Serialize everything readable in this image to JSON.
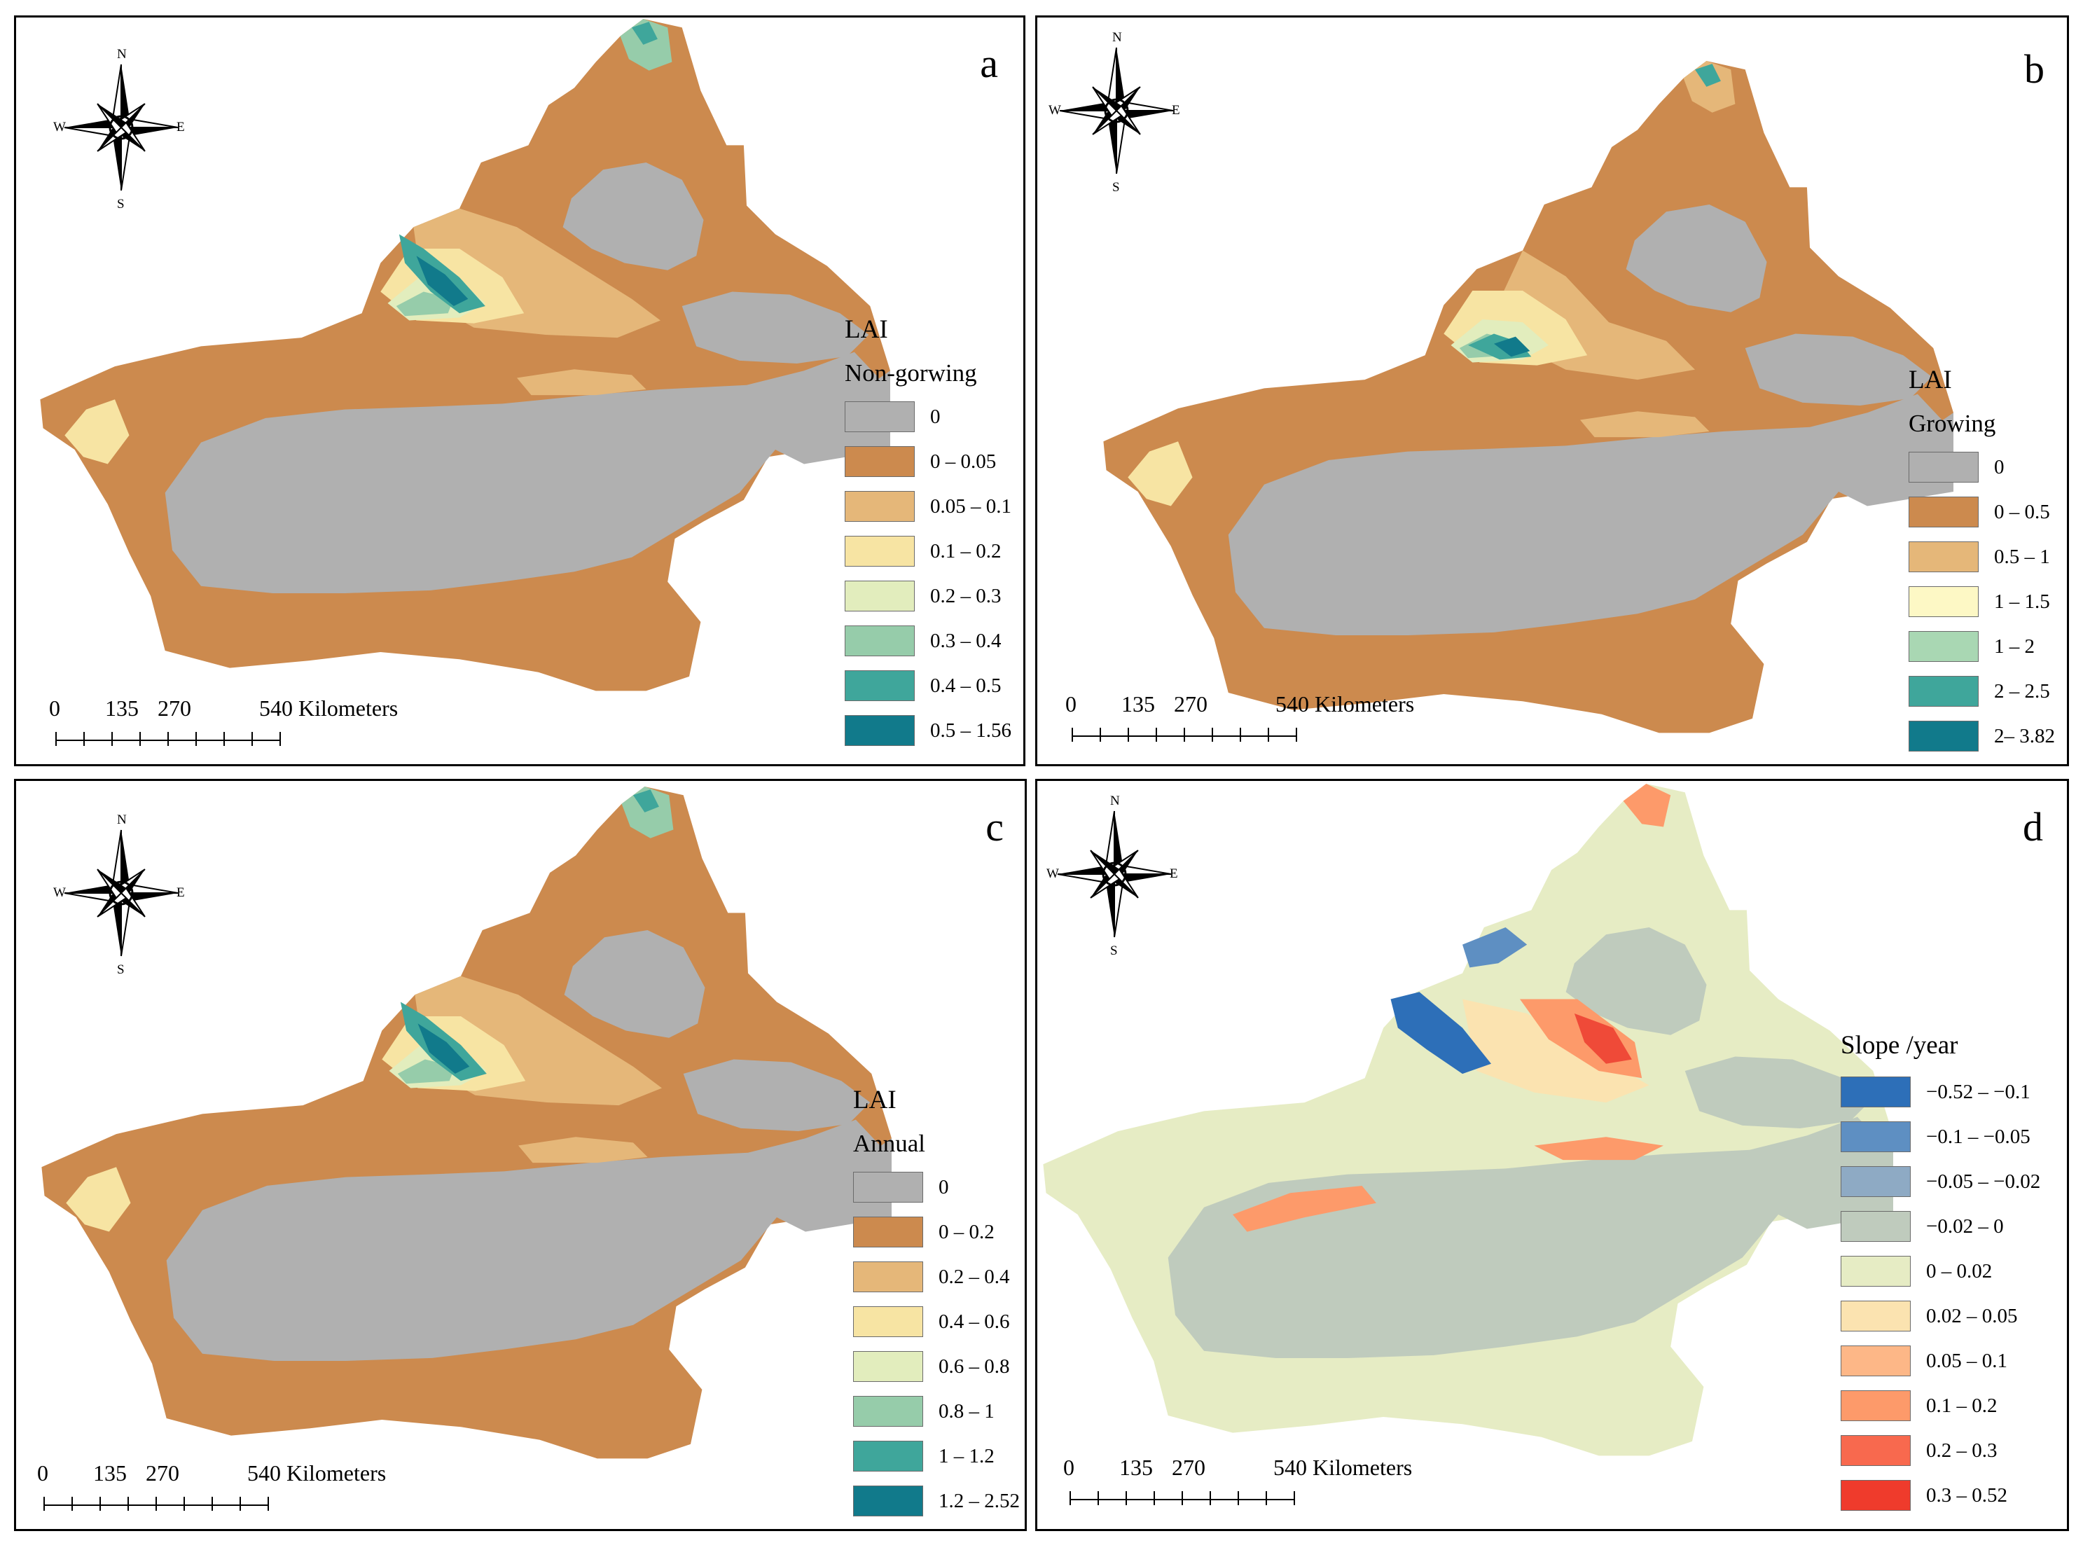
{
  "compass_labels": {
    "n": "N",
    "s": "S",
    "w": "W",
    "e": "E"
  },
  "scale": {
    "ticks": [
      "0",
      "135",
      "270",
      "540"
    ],
    "unit": "Kilometers"
  },
  "palette": {
    "nodata": "#b0b0b0",
    "base": "#cc8a4e",
    "tan": "#e5b779",
    "cream": "#f7e4a3",
    "pale": "#e2edbd",
    "mint": "#96ccaa",
    "teal": "#3fa69b",
    "deep": "#117a8b"
  },
  "slope_palette": {
    "base": "#e6ecc4",
    "desert": "#bfcbbd",
    "cream": "#fbe3b0",
    "orange": "#fd9a6a",
    "red": "#ef4a38",
    "blue": "#2d6fb8",
    "midblue": "#5e8fc2"
  },
  "panels": [
    {
      "id": "a",
      "letter": "a",
      "legend": {
        "title": "LAI",
        "subtitle": "Non-gorwing",
        "items": [
          {
            "label": "0",
            "color": "#b0b0b0"
          },
          {
            "label": "0 – 0.05",
            "color": "#cc8a4e"
          },
          {
            "label": "0.05 – 0.1",
            "color": "#e5b779"
          },
          {
            "label": "0.1 – 0.2",
            "color": "#f7e4a3"
          },
          {
            "label": "0.2 – 0.3",
            "color": "#e2edbd"
          },
          {
            "label": "0.3 – 0.4",
            "color": "#96ccaa"
          },
          {
            "label": "0.4 – 0.5",
            "color": "#3fa69b"
          },
          {
            "label": "0.5 – 1.56",
            "color": "#117a8b"
          }
        ]
      }
    },
    {
      "id": "b",
      "letter": "b",
      "legend": {
        "title": "LAI",
        "subtitle": "Growing",
        "items": [
          {
            "label": "0",
            "color": "#b0b0b0"
          },
          {
            "label": "0 – 0.5",
            "color": "#cc8a4e"
          },
          {
            "label": "0.5 – 1",
            "color": "#e5b779"
          },
          {
            "label": "1 – 1.5",
            "color": "#fdf8c5"
          },
          {
            "label": "1 – 2",
            "color": "#a9d7b3"
          },
          {
            "label": "2 – 2.5",
            "color": "#3fa69b"
          },
          {
            "label": "2– 3.82",
            "color": "#117a8b"
          }
        ]
      }
    },
    {
      "id": "c",
      "letter": "c",
      "legend": {
        "title": "LAI",
        "subtitle": "Annual",
        "items": [
          {
            "label": "0",
            "color": "#b0b0b0"
          },
          {
            "label": "0 – 0.2",
            "color": "#cc8a4e"
          },
          {
            "label": "0.2 – 0.4",
            "color": "#e5b779"
          },
          {
            "label": "0.4 – 0.6",
            "color": "#f7e4a3"
          },
          {
            "label": "0.6 – 0.8",
            "color": "#e2edbd"
          },
          {
            "label": "0.8 – 1",
            "color": "#96ccaa"
          },
          {
            "label": "1 – 1.2",
            "color": "#3fa69b"
          },
          {
            "label": "1.2 – 2.52",
            "color": "#117a8b"
          }
        ]
      }
    },
    {
      "id": "d",
      "letter": "d",
      "legend": {
        "title": "Slope /year",
        "subtitle": "",
        "items": [
          {
            "label": "−0.52 – −0.1",
            "color": "#2d6fb8"
          },
          {
            "label": "−0.1 – −0.05",
            "color": "#5e8fc2"
          },
          {
            "label": "−0.05 – −0.02",
            "color": "#8eaac4"
          },
          {
            "label": "−0.02 – 0",
            "color": "#bfcbbd"
          },
          {
            "label": "0 – 0.02",
            "color": "#e6ecc4"
          },
          {
            "label": "0.02 – 0.05",
            "color": "#fbe3b0"
          },
          {
            "label": "0.05 – 0.1",
            "color": "#fdb787"
          },
          {
            "label": "0.1 – 0.2",
            "color": "#fd9a6a"
          },
          {
            "label": "0.2 – 0.3",
            "color": "#f8694e"
          },
          {
            "label": "0.3 – 0.52",
            "color": "#ef3b2c"
          }
        ]
      }
    }
  ]
}
